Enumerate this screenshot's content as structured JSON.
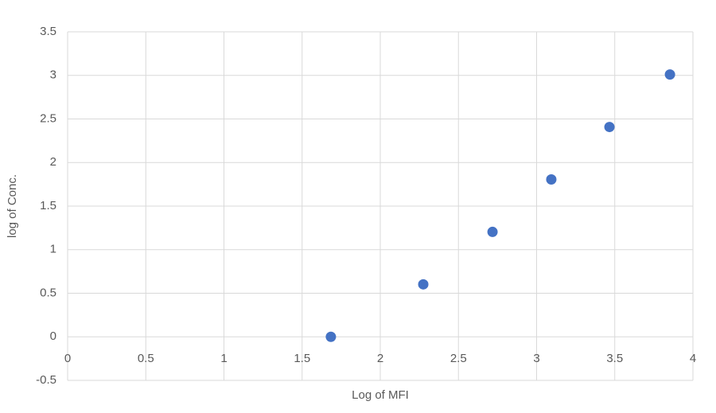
{
  "chart_data": {
    "type": "scatter",
    "x_label": "Log of MFI",
    "y_label": "log of Conc.",
    "x": [
      1.684,
      2.275,
      2.718,
      3.094,
      3.466,
      3.853
    ],
    "values": [
      0,
      0.602,
      1.204,
      1.806,
      2.408,
      3.01
    ],
    "color": "#4472c4",
    "xlim": [
      0,
      4
    ],
    "xticks": [
      0,
      0.5,
      1,
      1.5,
      2,
      2.5,
      3,
      3.5,
      4
    ],
    "ylim": [
      -0.5,
      3.5
    ],
    "yticks": [
      -0.5,
      0,
      0.5,
      1,
      1.5,
      2,
      2.5,
      3,
      3.5
    ],
    "grid": true
  }
}
